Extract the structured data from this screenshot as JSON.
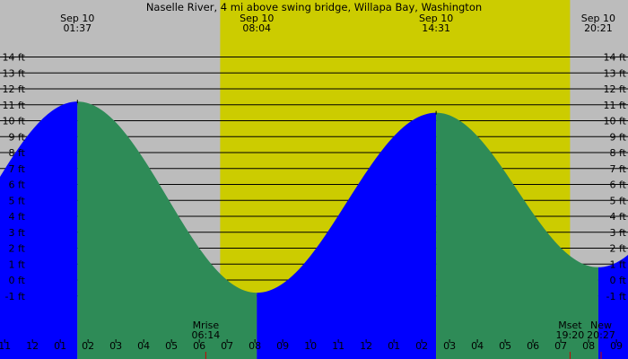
{
  "chart_data": {
    "type": "area",
    "title": "Naselle River, 4 mi above swing bridge, Willapa Bay, Washington",
    "ylabel_unit": "ft",
    "ylim": [
      -2,
      15
    ],
    "y_ticks": [
      14,
      13,
      12,
      11,
      10,
      9,
      8,
      7,
      6,
      5,
      4,
      3,
      2,
      1,
      0,
      -1
    ],
    "y_tick_labels": [
      "14 ft",
      "13 ft",
      "12 ft",
      "11 ft",
      "10 ft",
      "9 ft",
      "8 ft",
      "7 ft",
      "6 ft",
      "5 ft",
      "4 ft",
      "3 ft",
      "2 ft",
      "1 ft",
      "0 ft",
      "-1 ft"
    ],
    "x_start_hour": 22.833,
    "x_end_hour": 45.417,
    "x_hour_ticks": [
      23,
      24,
      25,
      26,
      27,
      28,
      29,
      30,
      31,
      32,
      33,
      34,
      35,
      36,
      37,
      38,
      39,
      40,
      41,
      42,
      43,
      44,
      45
    ],
    "x_tick_labels": [
      "11",
      "12",
      "01",
      "02",
      "03",
      "04",
      "05",
      "06",
      "07",
      "08",
      "09",
      "10",
      "11",
      "12",
      "01",
      "02",
      "03",
      "04",
      "05",
      "06",
      "07",
      "08",
      "09"
    ],
    "daylight": {
      "start_hour": 30.75,
      "end_hour": 43.333
    },
    "tide_extremes": [
      {
        "date": "Sep 10",
        "time": "01:37",
        "hour": 25.617,
        "height": 11.2,
        "type": "high"
      },
      {
        "date": "Sep 10",
        "time": "08:04",
        "hour": 32.067,
        "height": -0.8,
        "type": "low"
      },
      {
        "date": "Sep 10",
        "time": "14:31",
        "hour": 38.517,
        "height": 10.5,
        "type": "high"
      },
      {
        "date": "Sep 10",
        "time": "20:21",
        "hour": 44.35,
        "height": 0.8,
        "type": "low"
      }
    ],
    "colors": {
      "rising": "#0000ff",
      "falling": "#2e8b57",
      "daylight": "#cccc00",
      "night": "#bcbcbc"
    },
    "events": [
      {
        "label": "Mrise",
        "time": "06:14",
        "hour": 30.233
      },
      {
        "label": "Mset",
        "time": "19:20",
        "hour": 43.333
      },
      {
        "label": "New",
        "time": "20:27",
        "hour": 44.45
      }
    ]
  }
}
